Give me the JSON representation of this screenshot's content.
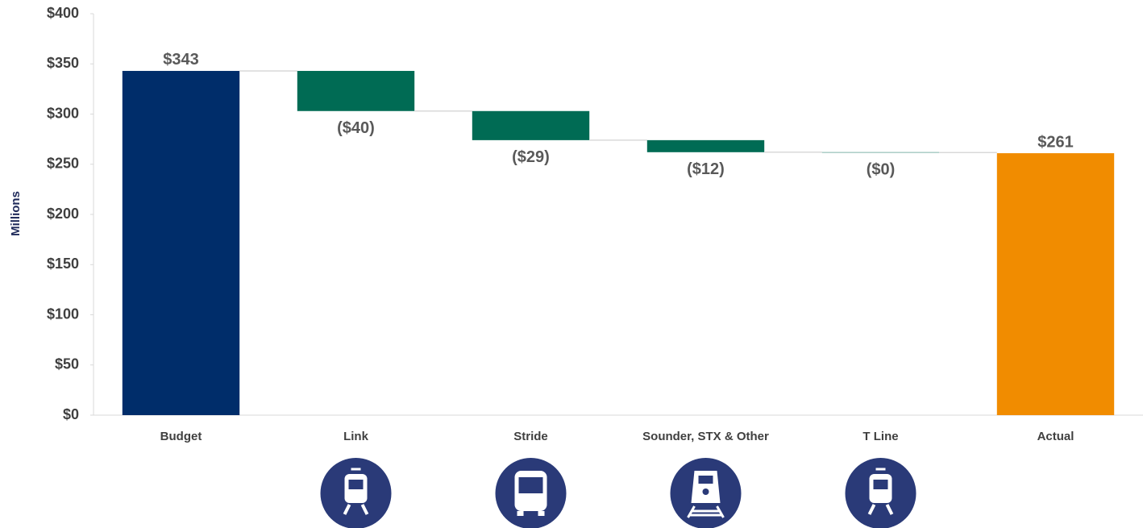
{
  "chart_data": {
    "type": "waterfall",
    "y_label": "Millions",
    "categories": [
      "Budget",
      "Link",
      "Stride",
      "Sounder, STX & Other",
      "T Line",
      "Actual"
    ],
    "values": [
      343,
      -40,
      -29,
      -12,
      -0.4,
      261
    ],
    "value_labels": [
      "$343",
      "($40)",
      "($29)",
      "($12)",
      "($0)",
      "$261"
    ],
    "kinds": [
      "total",
      "delta",
      "delta",
      "delta",
      "delta",
      "total"
    ],
    "colors": [
      "#002d6a",
      "#006b54",
      "#006b54",
      "#006b54",
      "#006b54",
      "#f18c00"
    ],
    "ylim": [
      0,
      400
    ],
    "yticks": [
      {
        "value": 0,
        "label": "$0"
      },
      {
        "value": 50,
        "label": "$50"
      },
      {
        "value": 100,
        "label": "$100"
      },
      {
        "value": 150,
        "label": "$150"
      },
      {
        "value": 200,
        "label": "$200"
      },
      {
        "value": 250,
        "label": "$250"
      },
      {
        "value": 300,
        "label": "$300"
      },
      {
        "value": 350,
        "label": "$350"
      },
      {
        "value": 400,
        "label": "$400"
      }
    ]
  }
}
